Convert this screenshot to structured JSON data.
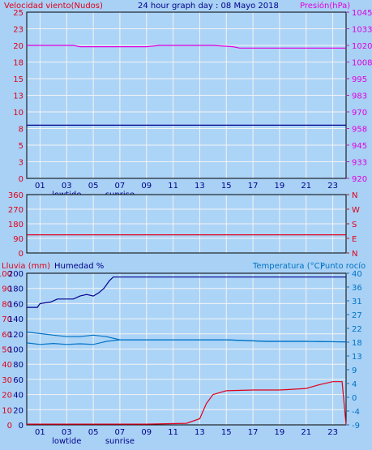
{
  "header": {
    "left_title": "Velocidad viento(Nudos)",
    "center_title": "24 hour graph day : 08 Mayo 2018",
    "right_title": "Presión(hPa)"
  },
  "colors": {
    "background": "#a8d1f5",
    "plot_bg": "#acd4f7",
    "grid": "#f3f3f3",
    "red": "#e0001b",
    "magenta": "#e000e0",
    "navy": "#00008b",
    "blue": "#0072c6",
    "axis": "#000000"
  },
  "x_axis": {
    "tick_labels": [
      "01",
      "03",
      "05",
      "07",
      "09",
      "11",
      "13",
      "15",
      "17",
      "19",
      "21",
      "23"
    ],
    "markers": [
      {
        "label": "lowtide",
        "hour": 3
      },
      {
        "label": "sunrise",
        "hour": 7
      }
    ]
  },
  "chart_data": [
    {
      "type": "line",
      "name": "wind-pressure",
      "y_left": {
        "label": "Velocidad viento(Nudos)",
        "ticks": [
          "0",
          "3",
          "5",
          "8",
          "10",
          "13",
          "15",
          "18",
          "20",
          "23",
          "25"
        ],
        "ylim": [
          0,
          25
        ]
      },
      "y_right": {
        "label": "Presión(hPa)",
        "ticks": [
          "920",
          "933",
          "945",
          "958",
          "970",
          "983",
          "995",
          "1008",
          "1020",
          "1033",
          "1045"
        ],
        "ylim": [
          920,
          1045
        ]
      },
      "x": {
        "range": [
          0,
          24
        ]
      },
      "series": [
        {
          "key": "wind",
          "axis": "left",
          "color": "#00008b",
          "points": [
            [
              0,
              8
            ],
            [
              24,
              8
            ]
          ]
        },
        {
          "key": "pressure",
          "axis": "right",
          "color": "#e000e0",
          "points": [
            [
              0,
              1020
            ],
            [
              3.5,
              1020
            ],
            [
              4,
              1019
            ],
            [
              6,
              1019
            ],
            [
              7,
              1019
            ],
            [
              9,
              1019
            ],
            [
              10,
              1020
            ],
            [
              13,
              1020
            ],
            [
              14,
              1020
            ],
            [
              15.5,
              1019
            ],
            [
              16,
              1018
            ],
            [
              17.5,
              1018
            ],
            [
              18.5,
              1018
            ],
            [
              19,
              1018
            ],
            [
              23,
              1018
            ],
            [
              24,
              1018
            ]
          ]
        }
      ]
    },
    {
      "type": "line",
      "name": "wind-direction",
      "y_left": {
        "ticks": [
          "0",
          "90",
          "180",
          "270",
          "360"
        ],
        "ylim": [
          0,
          360
        ]
      },
      "y_right": {
        "ticks": [
          "N",
          "E",
          "S",
          "W",
          "N"
        ]
      },
      "x": {
        "range": [
          0,
          24
        ]
      },
      "series": [
        {
          "key": "direction",
          "axis": "left",
          "color": "#e0001b",
          "points": [
            [
              0,
              112
            ],
            [
              24,
              112
            ]
          ]
        }
      ]
    },
    {
      "type": "line",
      "name": "rain-humidity-temperature",
      "labels": {
        "rain": "Lluvia (mm)",
        "humidity": "Humedad %",
        "temp": "Temperatura (°C)",
        "dew": "Punto rocío"
      },
      "y_left_rain": {
        "ticks": [
          "0",
          "10",
          "20",
          "30",
          "40",
          "50",
          "60",
          "70",
          "80",
          "90",
          "100"
        ],
        "ylim": [
          0,
          100
        ]
      },
      "y_left_humidity": {
        "ticks": [
          "0",
          "20",
          "40",
          "60",
          "80",
          "100",
          "120",
          "140",
          "160",
          "180",
          "200"
        ],
        "ylim": [
          0,
          200
        ]
      },
      "y_right": {
        "ticks": [
          "-9",
          "-4",
          "0",
          "4",
          "9",
          "13",
          "18",
          "22",
          "27",
          "31",
          "36",
          "40"
        ],
        "ylim": [
          -9,
          40
        ]
      },
      "x": {
        "range": [
          0,
          24
        ]
      },
      "series": [
        {
          "key": "humidity",
          "axis": "humidity",
          "color": "#00008b",
          "points": [
            [
              0,
              155
            ],
            [
              0.8,
              155
            ],
            [
              1,
              160
            ],
            [
              1.8,
              162
            ],
            [
              2.3,
              166
            ],
            [
              3,
              166
            ],
            [
              3.5,
              166
            ],
            [
              4,
              170
            ],
            [
              4.5,
              172
            ],
            [
              5,
              170
            ],
            [
              5.4,
              174
            ],
            [
              5.8,
              180
            ],
            [
              6.2,
              190
            ],
            [
              6.5,
              195
            ],
            [
              24,
              195
            ]
          ]
        },
        {
          "key": "temperature",
          "axis": "right",
          "color": "#0072c6",
          "points": [
            [
              0,
              21
            ],
            [
              1,
              20.5
            ],
            [
              2,
              20
            ],
            [
              3,
              19.5
            ],
            [
              4,
              19.5
            ],
            [
              5,
              20
            ],
            [
              6,
              19.5
            ],
            [
              7,
              18.5
            ],
            [
              9,
              18.5
            ],
            [
              12,
              18.5
            ],
            [
              15,
              18.5
            ],
            [
              18,
              18
            ],
            [
              21,
              18
            ],
            [
              24,
              17.8
            ]
          ]
        },
        {
          "key": "dew",
          "axis": "right",
          "color": "#0072c6",
          "points": [
            [
              0,
              17.5
            ],
            [
              1,
              17
            ],
            [
              2,
              17.3
            ],
            [
              3,
              17
            ],
            [
              4,
              17.2
            ],
            [
              5,
              17
            ],
            [
              6,
              18
            ],
            [
              7,
              18.5
            ],
            [
              9,
              18.5
            ],
            [
              12,
              18.5
            ],
            [
              15,
              18.5
            ],
            [
              18,
              18
            ],
            [
              21,
              18
            ],
            [
              24,
              17.8
            ]
          ]
        },
        {
          "key": "rain",
          "axis": "rain",
          "color": "#e0001b",
          "points": [
            [
              0,
              0.5
            ],
            [
              9,
              0.5
            ],
            [
              12,
              1
            ],
            [
              13,
              4
            ],
            [
              13.5,
              14
            ],
            [
              14,
              20
            ],
            [
              15,
              22.5
            ],
            [
              17,
              23
            ],
            [
              19,
              23
            ],
            [
              20,
              23.5
            ],
            [
              21,
              24
            ],
            [
              22,
              26.5
            ],
            [
              23,
              28.5
            ],
            [
              23.7,
              28.5
            ],
            [
              24,
              0
            ]
          ]
        }
      ]
    }
  ]
}
